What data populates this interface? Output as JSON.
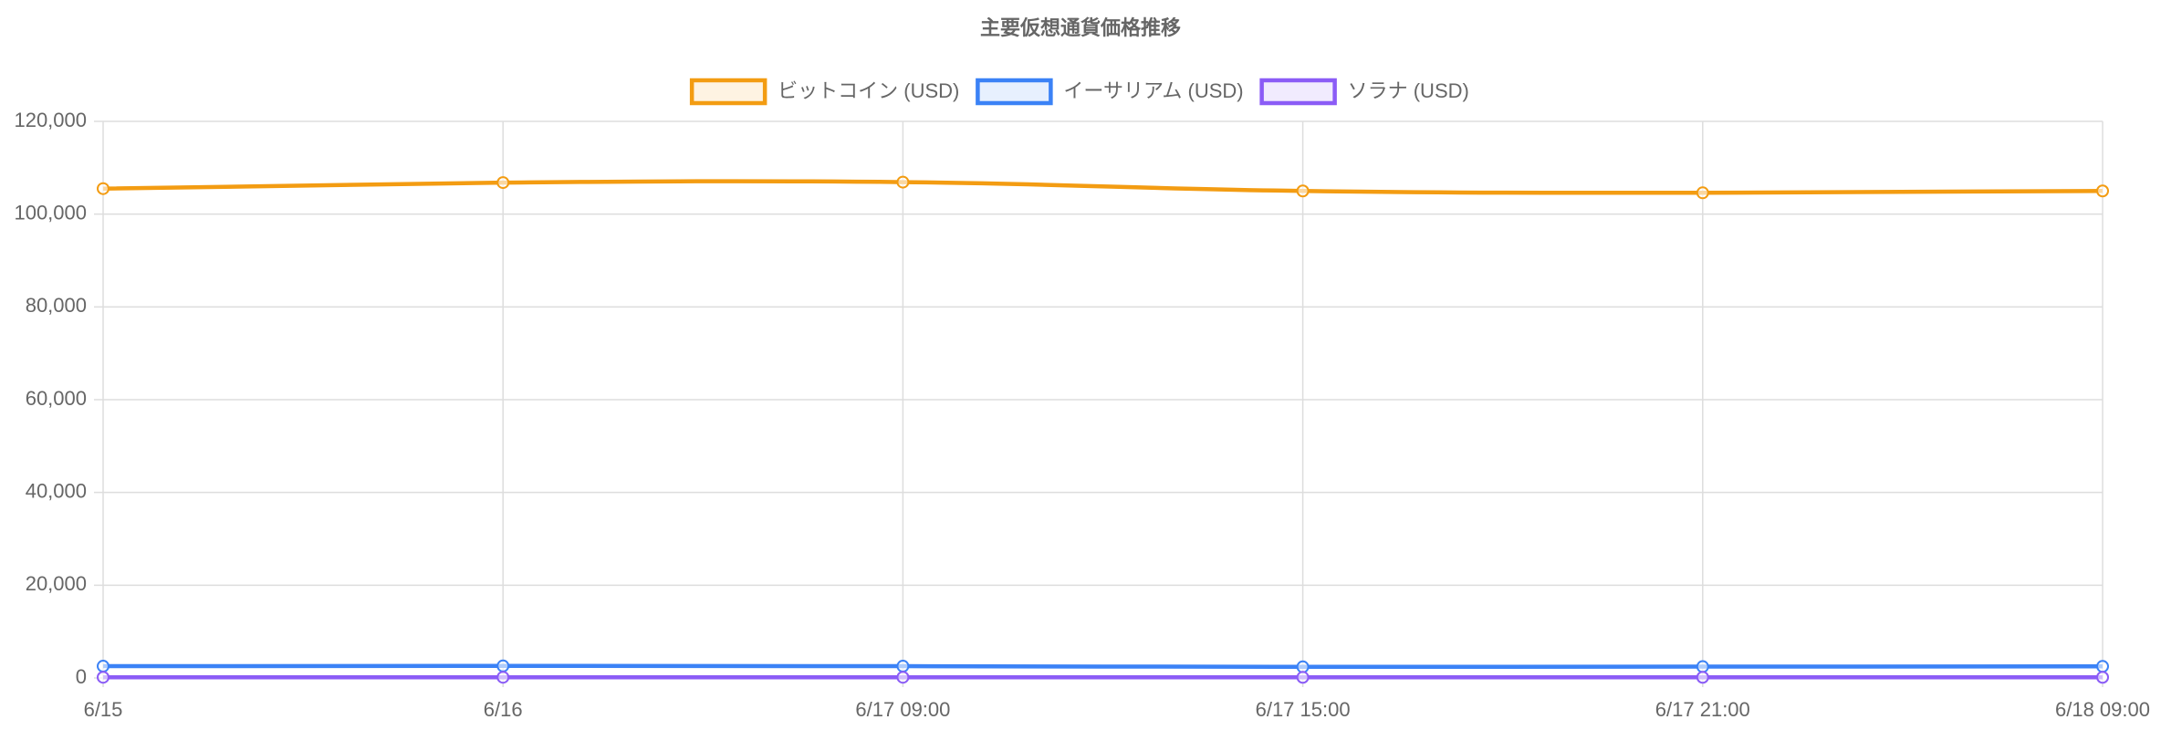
{
  "chart_data": {
    "type": "line",
    "title": "主要仮想通貨価格推移",
    "categories": [
      "6/15",
      "6/16",
      "6/17 09:00",
      "6/17 15:00",
      "6/17 21:00",
      "6/18 09:00"
    ],
    "series": [
      {
        "name": "ビットコイン (USD)",
        "color": "#f39c12",
        "values": [
          105500,
          106800,
          106900,
          105000,
          104600,
          105000
        ]
      },
      {
        "name": "イーサリアム (USD)",
        "color": "#3b82f6",
        "values": [
          2550,
          2600,
          2550,
          2400,
          2450,
          2500
        ]
      },
      {
        "name": "ソラナ (USD)",
        "color": "#8b5cf6",
        "values": [
          150,
          155,
          152,
          145,
          147,
          148
        ]
      }
    ],
    "ylim": [
      0,
      120000
    ],
    "yticks": [
      0,
      {
        "value": 20000,
        "label": "20,000"
      },
      {
        "value": 40000,
        "label": "40,000"
      },
      {
        "value": 60000,
        "label": "60,000"
      },
      {
        "value": 80000,
        "label": "80,000"
      },
      {
        "value": 100000,
        "label": "100,000"
      },
      {
        "value": 120000,
        "label": "120,000"
      }
    ],
    "grid": true,
    "legend": "top"
  }
}
